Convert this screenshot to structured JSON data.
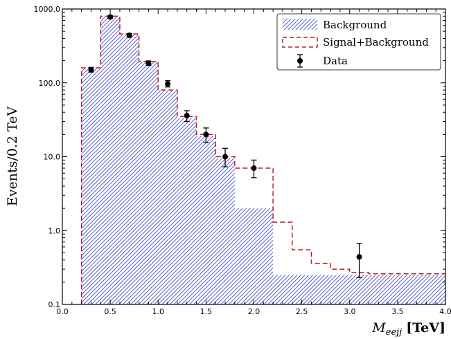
{
  "chart_data": {
    "type": "histogram",
    "title": "",
    "xlabel_main": "M",
    "xlabel_sub": "eejj",
    "xlabel_unit": "[TeV]",
    "ylabel": "Events/0.2 TeV",
    "xlim": [
      0.0,
      4.0
    ],
    "ylim": [
      0.1,
      1000.0
    ],
    "yscale": "log",
    "x_ticks": [
      "0.0",
      "0.5",
      "1.0",
      "1.5",
      "2.0",
      "2.5",
      "3.0",
      "3.5",
      "4.0"
    ],
    "y_ticks": [
      "0.1",
      "1.0",
      "10.0",
      "100.0",
      "1000.0"
    ],
    "legend_position": "top-right",
    "colors": {
      "background": "#3b3fc4",
      "signal": "#b22222",
      "data": "#000000"
    },
    "background": {
      "name": "Background",
      "bins": [
        {
          "x0": 0.2,
          "x1": 0.4,
          "y": 160
        },
        {
          "x0": 0.4,
          "x1": 0.6,
          "y": 800
        },
        {
          "x0": 0.6,
          "x1": 0.8,
          "y": 450
        },
        {
          "x0": 0.8,
          "x1": 1.0,
          "y": 190
        },
        {
          "x0": 1.0,
          "x1": 1.2,
          "y": 78
        },
        {
          "x0": 1.2,
          "x1": 1.4,
          "y": 33
        },
        {
          "x0": 1.4,
          "x1": 1.6,
          "y": 19
        },
        {
          "x0": 1.6,
          "x1": 1.8,
          "y": 9.5
        },
        {
          "x0": 1.8,
          "x1": 2.2,
          "y": 2.0
        },
        {
          "x0": 2.2,
          "x1": 4.0,
          "y": 0.25
        }
      ]
    },
    "signal_plus_background": {
      "name": "Signal+Background",
      "bins": [
        {
          "x0": 0.2,
          "x1": 0.4,
          "y": 160
        },
        {
          "x0": 0.4,
          "x1": 0.6,
          "y": 800
        },
        {
          "x0": 0.6,
          "x1": 0.8,
          "y": 460
        },
        {
          "x0": 0.8,
          "x1": 1.0,
          "y": 195
        },
        {
          "x0": 1.0,
          "x1": 1.2,
          "y": 80
        },
        {
          "x0": 1.2,
          "x1": 1.4,
          "y": 35
        },
        {
          "x0": 1.4,
          "x1": 1.6,
          "y": 20
        },
        {
          "x0": 1.6,
          "x1": 1.8,
          "y": 10
        },
        {
          "x0": 1.8,
          "x1": 2.2,
          "y": 7.0
        },
        {
          "x0": 2.2,
          "x1": 2.4,
          "y": 1.3
        },
        {
          "x0": 2.4,
          "x1": 2.6,
          "y": 0.55
        },
        {
          "x0": 2.6,
          "x1": 2.8,
          "y": 0.36
        },
        {
          "x0": 2.8,
          "x1": 3.0,
          "y": 0.3
        },
        {
          "x0": 3.0,
          "x1": 3.2,
          "y": 0.27
        },
        {
          "x0": 3.2,
          "x1": 4.0,
          "y": 0.26
        }
      ]
    },
    "data": {
      "name": "Data",
      "points": [
        {
          "x": 0.3,
          "y": 150,
          "ylo": 140,
          "yhi": 162
        },
        {
          "x": 0.5,
          "y": 780,
          "ylo": 750,
          "yhi": 810
        },
        {
          "x": 0.7,
          "y": 440,
          "ylo": 415,
          "yhi": 465
        },
        {
          "x": 0.9,
          "y": 185,
          "ylo": 172,
          "yhi": 198
        },
        {
          "x": 1.1,
          "y": 97,
          "ylo": 88,
          "yhi": 107
        },
        {
          "x": 1.3,
          "y": 36,
          "ylo": 30,
          "yhi": 42
        },
        {
          "x": 1.5,
          "y": 20,
          "ylo": 15.5,
          "yhi": 24.5
        },
        {
          "x": 1.7,
          "y": 10,
          "ylo": 7.3,
          "yhi": 13
        },
        {
          "x": 2.0,
          "y": 7.0,
          "ylo": 5.2,
          "yhi": 9.0
        },
        {
          "x": 3.1,
          "y": 0.44,
          "ylo": 0.23,
          "yhi": 0.67
        }
      ]
    }
  }
}
